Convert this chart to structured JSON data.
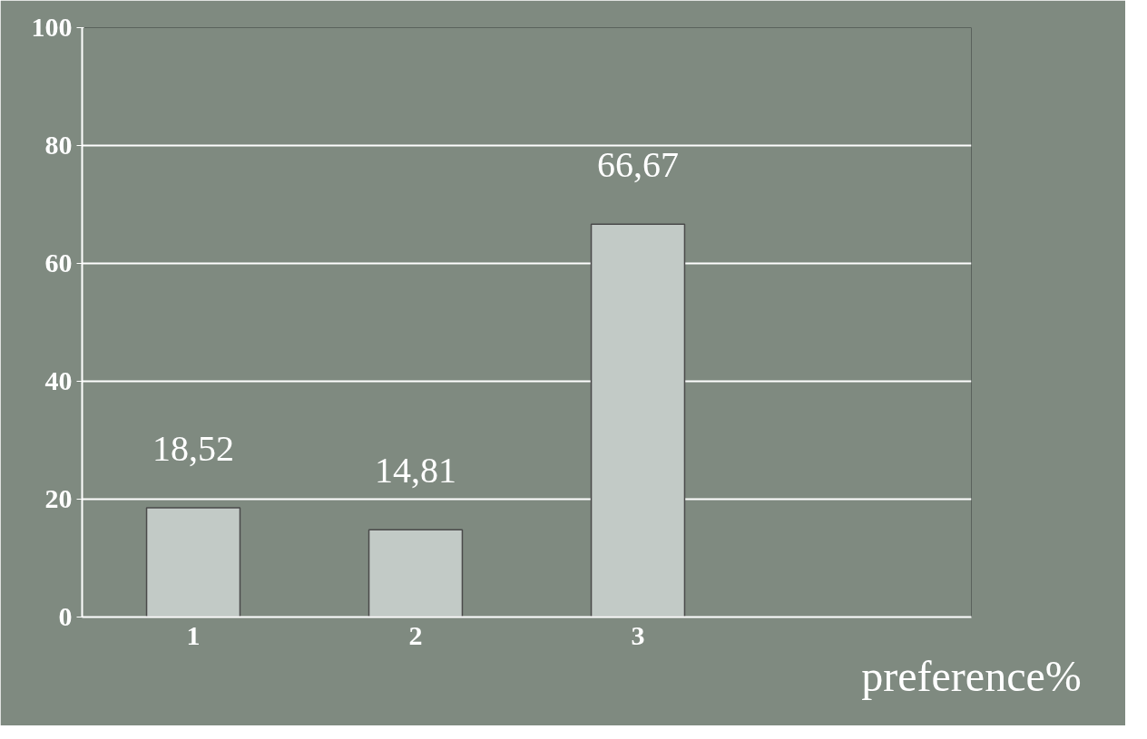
{
  "chart_data": {
    "type": "bar",
    "categories": [
      "1",
      "2",
      "3",
      null
    ],
    "values": [
      18.52,
      14.81,
      66.67,
      null
    ],
    "value_labels": [
      "18,52",
      "14,81",
      "66,67",
      null
    ],
    "color": "#c2cac6",
    "ylim": [
      0,
      100
    ],
    "yticks": [
      0,
      20,
      40,
      60,
      80,
      100
    ],
    "grid": "y",
    "xlabel": "preference%"
  }
}
